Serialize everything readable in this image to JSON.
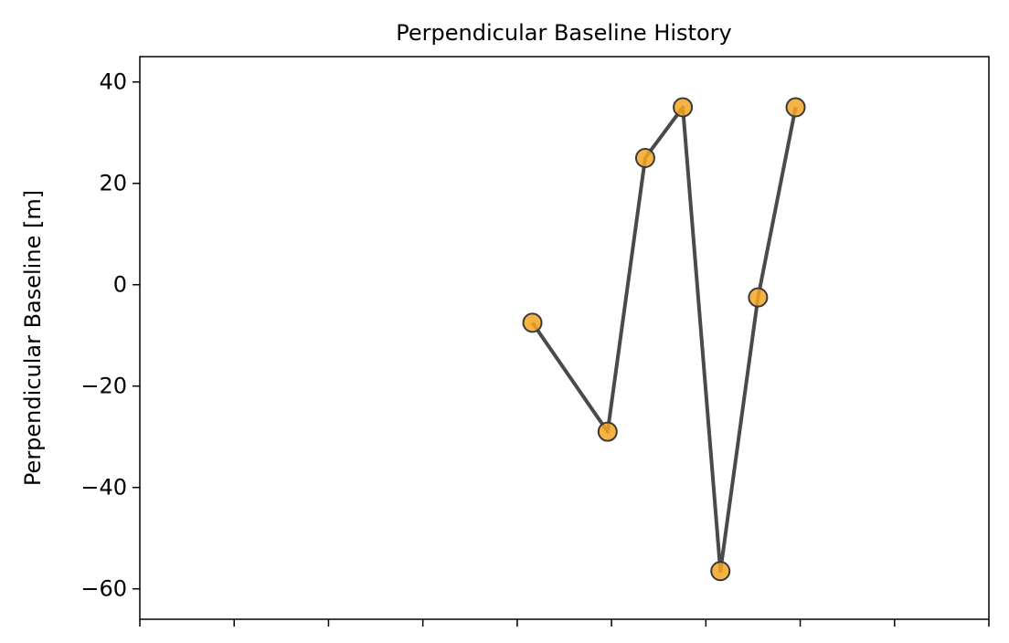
{
  "chart_data": {
    "type": "line",
    "title": "Perpendicular Baseline History",
    "xlabel": "",
    "ylabel": "Perpendicular Baseline [m]",
    "x": [
      0.0,
      1.0,
      1.5,
      2.0,
      2.5,
      3.0,
      3.5
    ],
    "series": [
      {
        "values": [
          -7.5,
          -29,
          25,
          35,
          -56.5,
          -2.5,
          35
        ]
      }
    ],
    "xlim": [
      -5.22,
      6.07
    ],
    "ylim": [
      -66,
      45
    ],
    "yticks": [
      -60,
      -40,
      -20,
      0,
      20,
      40
    ],
    "ytick_labels": [
      "−60",
      "−40",
      "−20",
      "0",
      "20",
      "40"
    ],
    "xtick_count": 10,
    "grid": false,
    "line_color": "#4a4a4a",
    "marker_fill": "#f5a623",
    "marker_edge": "#3a3a3a"
  }
}
